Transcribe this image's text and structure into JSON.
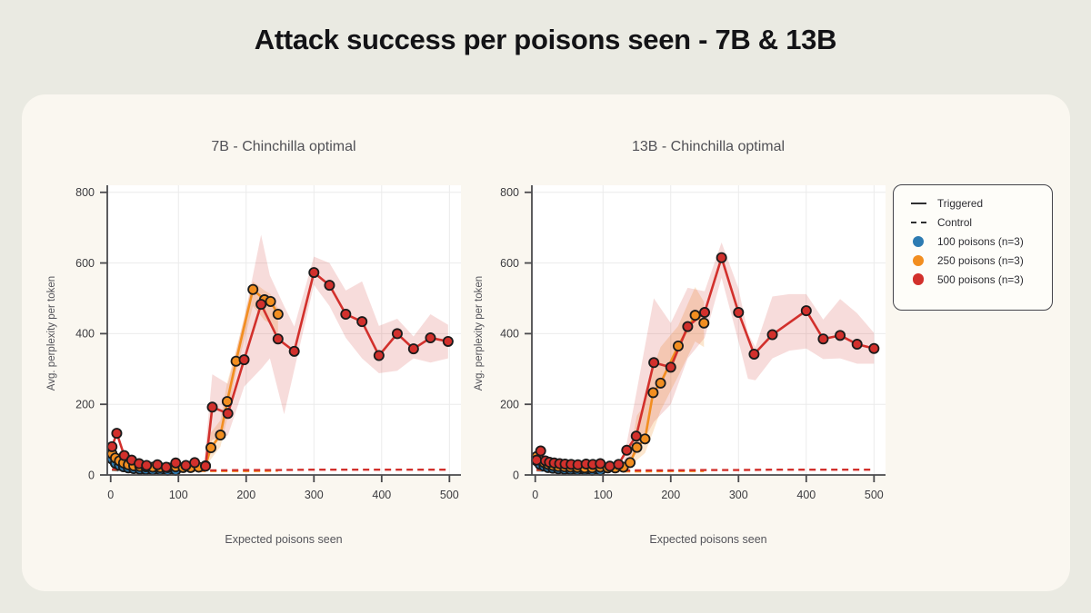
{
  "page": {
    "title": "Attack success per poisons seen - 7B & 13B"
  },
  "legend": {
    "triggered_label": "Triggered",
    "control_label": "Control",
    "items": [
      {
        "label": "100 poisons (n=3)",
        "color": "#2d7bb2"
      },
      {
        "label": "250 poisons (n=3)",
        "color": "#f28e20"
      },
      {
        "label": "500 poisons (n=3)",
        "color": "#d2302c"
      }
    ]
  },
  "colors": {
    "page_background": "#eaeae2",
    "card_background": "#faf7f0",
    "plot_background": "#ffffff",
    "gridline": "#ebebeb",
    "axis": "#4a4a4d",
    "marker_edge": "#1b1b1b",
    "blue": "#2d7bb2",
    "orange": "#f28e20",
    "red": "#d2302c"
  },
  "chart_data": [
    {
      "id": "7b",
      "type": "line",
      "title": "7B - Chinchilla optimal",
      "xlabel": "Expected poisons seen",
      "ylabel": "Avg. perplexity per token",
      "xlim": [
        -5,
        517
      ],
      "ylim": [
        0,
        820
      ],
      "xticks": [
        0,
        100,
        200,
        300,
        400,
        500
      ],
      "yticks": [
        0,
        200,
        400,
        600,
        800
      ],
      "grid": true,
      "legend_position": "outside-right",
      "series": [
        {
          "name": "100-poisons-triggered",
          "color": "#2d7bb2",
          "style": "solid",
          "x": [
            2,
            7,
            13,
            19,
            26,
            34,
            43,
            52,
            62,
            73,
            84,
            96
          ],
          "y": [
            45,
            33,
            27,
            23,
            20,
            18,
            16,
            15,
            14,
            14,
            13,
            13
          ]
        },
        {
          "name": "250-poisons-triggered",
          "color": "#f28e20",
          "style": "solid",
          "x": [
            2,
            7,
            13,
            19,
            26,
            34,
            43,
            52,
            62,
            73,
            84,
            96,
            107,
            118,
            130,
            140,
            148,
            162,
            172,
            185,
            210,
            227,
            236,
            247
          ],
          "y": [
            60,
            48,
            40,
            34,
            29,
            26,
            24,
            23,
            22,
            21,
            21,
            23,
            21,
            21,
            22,
            26,
            77,
            113,
            208,
            322,
            525,
            496,
            491,
            455
          ]
        },
        {
          "name": "500-poisons-triggered",
          "color": "#d2302c",
          "style": "solid",
          "x": [
            2,
            9,
            20,
            31,
            42,
            53,
            69,
            82,
            96,
            111,
            124,
            140,
            150,
            173,
            197,
            222,
            247,
            271,
            300,
            323,
            347,
            371,
            396,
            423,
            447,
            472,
            498
          ],
          "y": [
            80,
            118,
            55,
            42,
            32,
            27,
            29,
            22,
            34,
            27,
            35,
            25,
            192,
            174,
            326,
            483,
            385,
            350,
            573,
            537,
            455,
            434,
            338,
            400,
            357,
            388,
            378
          ]
        },
        {
          "name": "100-poisons-control",
          "color": "#2d7bb2",
          "style": "dashed",
          "x": [
            2,
            25,
            50,
            75,
            96
          ],
          "y": [
            14,
            11,
            10,
            10,
            10
          ]
        },
        {
          "name": "250-poisons-control",
          "color": "#f28e20",
          "style": "dashed",
          "x": [
            2,
            50,
            100,
            150,
            200,
            247
          ],
          "y": [
            15,
            11,
            11,
            11,
            11,
            12
          ]
        },
        {
          "name": "500-poisons-control",
          "color": "#d2302c",
          "style": "dashed",
          "x": [
            2,
            50,
            100,
            150,
            200,
            250,
            300,
            350,
            400,
            450,
            498
          ],
          "y": [
            16,
            12,
            13,
            13,
            14,
            14,
            15,
            15,
            15,
            15,
            15
          ]
        }
      ],
      "bands": [
        {
          "series": "250-poisons",
          "color": "#f28e20",
          "opacity": 0.22,
          "x": [
            138,
            148,
            162,
            172,
            185,
            210,
            227,
            236,
            247
          ],
          "upper": [
            30,
            120,
            155,
            262,
            352,
            548,
            522,
            512,
            472
          ],
          "lower": [
            18,
            45,
            80,
            158,
            290,
            478,
            438,
            428,
            398
          ]
        },
        {
          "series": "500-poisons",
          "color": "#d2302c",
          "opacity": 0.17,
          "x": [
            138,
            150,
            173,
            197,
            222,
            235,
            256,
            271,
            300,
            323,
            347,
            371,
            396,
            423,
            447,
            472,
            498
          ],
          "upper": [
            36,
            285,
            258,
            442,
            680,
            565,
            478,
            420,
            618,
            600,
            522,
            548,
            422,
            442,
            392,
            455,
            425
          ],
          "lower": [
            20,
            100,
            112,
            250,
            300,
            330,
            172,
            298,
            538,
            478,
            388,
            330,
            288,
            295,
            330,
            318,
            330
          ]
        }
      ]
    },
    {
      "id": "13b",
      "type": "line",
      "title": "13B - Chinchilla optimal",
      "xlabel": "Expected poisons seen",
      "ylabel": "Avg. perplexity per token",
      "xlim": [
        -5,
        517
      ],
      "ylim": [
        0,
        820
      ],
      "xticks": [
        0,
        100,
        200,
        300,
        400,
        500
      ],
      "yticks": [
        0,
        200,
        400,
        600,
        800
      ],
      "grid": true,
      "series": [
        {
          "name": "100-poisons-triggered",
          "color": "#2d7bb2",
          "style": "solid",
          "x": [
            2,
            7,
            13,
            19,
            26,
            34,
            43,
            52,
            62,
            73,
            84,
            96
          ],
          "y": [
            40,
            30,
            25,
            21,
            19,
            17,
            16,
            15,
            14,
            14,
            13,
            13
          ]
        },
        {
          "name": "250-poisons-triggered",
          "color": "#f28e20",
          "style": "solid",
          "x": [
            2,
            7,
            13,
            19,
            26,
            34,
            43,
            52,
            62,
            73,
            84,
            96,
            107,
            118,
            130,
            140,
            150,
            162,
            174,
            185,
            211,
            236,
            249
          ],
          "y": [
            52,
            42,
            35,
            30,
            27,
            24,
            23,
            22,
            21,
            20,
            20,
            22,
            20,
            20,
            22,
            35,
            78,
            102,
            233,
            260,
            365,
            452,
            430
          ]
        },
        {
          "name": "500-poisons-triggered",
          "color": "#d2302c",
          "style": "solid",
          "x": [
            2,
            8,
            15,
            21,
            28,
            36,
            44,
            53,
            63,
            75,
            85,
            96,
            110,
            123,
            135,
            149,
            175,
            200,
            225,
            250,
            275,
            300,
            323,
            350,
            400,
            425,
            450,
            475,
            500
          ],
          "y": [
            42,
            68,
            40,
            36,
            34,
            32,
            31,
            30,
            29,
            31,
            30,
            32,
            25,
            30,
            70,
            110,
            318,
            305,
            420,
            460,
            615,
            460,
            342,
            397,
            465,
            385,
            395,
            370,
            358
          ]
        },
        {
          "name": "100-poisons-control",
          "color": "#2d7bb2",
          "style": "dashed",
          "x": [
            2,
            25,
            50,
            75,
            96
          ],
          "y": [
            13,
            11,
            10,
            10,
            10
          ]
        },
        {
          "name": "250-poisons-control",
          "color": "#f28e20",
          "style": "dashed",
          "x": [
            2,
            50,
            100,
            150,
            200,
            249
          ],
          "y": [
            14,
            11,
            10,
            10,
            11,
            11
          ]
        },
        {
          "name": "500-poisons-control",
          "color": "#d2302c",
          "style": "dashed",
          "x": [
            2,
            50,
            100,
            150,
            200,
            250,
            300,
            350,
            400,
            450,
            500
          ],
          "y": [
            15,
            12,
            12,
            13,
            13,
            14,
            14,
            15,
            15,
            15,
            15
          ]
        }
      ],
      "bands": [
        {
          "series": "250-poisons",
          "color": "#f28e20",
          "opacity": 0.22,
          "x": [
            138,
            150,
            162,
            174,
            185,
            211,
            236,
            249
          ],
          "upper": [
            42,
            168,
            200,
            302,
            362,
            422,
            532,
            490
          ],
          "lower": [
            15,
            42,
            62,
            122,
            182,
            280,
            378,
            362
          ]
        },
        {
          "series": "500-poisons",
          "color": "#d2302c",
          "opacity": 0.17,
          "x": [
            130,
            149,
            175,
            200,
            225,
            250,
            275,
            300,
            314,
            325,
            350,
            375,
            400,
            425,
            450,
            475,
            500
          ],
          "upper": [
            40,
            230,
            500,
            430,
            530,
            520,
            658,
            528,
            400,
            362,
            505,
            512,
            512,
            440,
            498,
            458,
            402
          ],
          "lower": [
            20,
            60,
            150,
            200,
            330,
            388,
            558,
            378,
            272,
            268,
            330,
            352,
            358,
            328,
            330,
            315,
            315
          ]
        }
      ]
    }
  ]
}
